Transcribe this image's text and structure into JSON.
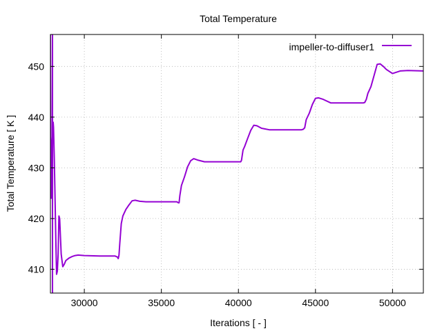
{
  "chart_data": {
    "type": "line",
    "title": "Total Temperature",
    "xlabel": "Iterations [ - ]",
    "ylabel": "Total Temperature [ K ]",
    "xlim": [
      27800,
      52000
    ],
    "ylim": [
      405.3,
      456.3
    ],
    "xticks": [
      30000,
      35000,
      40000,
      45000,
      50000
    ],
    "yticks": [
      410,
      420,
      430,
      440,
      450
    ],
    "grid": true,
    "legend_position": "top-right",
    "series": [
      {
        "name": "impeller-to-diffuser1",
        "color": "#9400d3",
        "x": [
          27800,
          27850,
          27900,
          27950,
          27980,
          28000,
          28050,
          28100,
          28150,
          28200,
          28250,
          28300,
          28350,
          28400,
          28450,
          28500,
          28600,
          28700,
          28800,
          29000,
          29200,
          29400,
          29600,
          30000,
          31000,
          32000,
          32150,
          32200,
          32250,
          32300,
          32400,
          32500,
          32700,
          32900,
          33100,
          33300,
          33600,
          34000,
          35000,
          36000,
          36100,
          36150,
          36200,
          36300,
          36500,
          36700,
          36900,
          37100,
          37400,
          37800,
          38500,
          40000,
          40150,
          40200,
          40300,
          40400,
          40600,
          40800,
          41000,
          41200,
          41500,
          42000,
          43000,
          44100,
          44200,
          44300,
          44400,
          44600,
          44800,
          45000,
          45200,
          45500,
          46000,
          47000,
          48100,
          48200,
          48300,
          48400,
          48600,
          48800,
          49000,
          49200,
          49400,
          49600,
          49800,
          50000,
          50500,
          51000,
          52000
        ],
        "values": [
          456.3,
          424,
          434,
          437,
          439,
          438,
          432,
          424,
          416,
          409,
          409.6,
          413,
          420.5,
          420,
          416.5,
          413,
          410.5,
          411,
          411.7,
          412.2,
          412.5,
          412.7,
          412.8,
          412.7,
          412.6,
          412.6,
          412.4,
          412.1,
          412.8,
          415,
          419,
          420.5,
          421.8,
          422.7,
          423.5,
          423.6,
          423.4,
          423.3,
          423.3,
          423.3,
          423.1,
          423.1,
          424.5,
          426.5,
          428.2,
          430.2,
          431.4,
          431.8,
          431.5,
          431.2,
          431.2,
          431.2,
          431.2,
          431.5,
          433.5,
          434.2,
          435.8,
          437.4,
          438.4,
          438.3,
          437.8,
          437.5,
          437.5,
          437.5,
          437.6,
          437.9,
          439.5,
          440.8,
          442.5,
          443.7,
          443.8,
          443.5,
          442.8,
          442.8,
          442.8,
          442.9,
          443.5,
          444.7,
          446,
          448.2,
          450.4,
          450.5,
          450,
          449.4,
          449,
          448.6,
          449.1,
          449.2,
          449.1
        ]
      }
    ]
  }
}
